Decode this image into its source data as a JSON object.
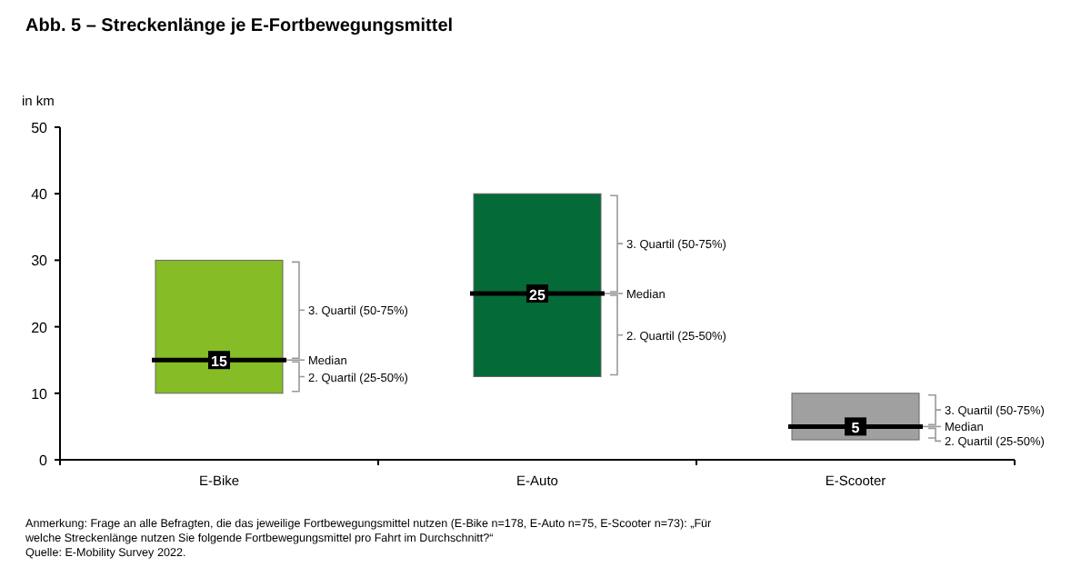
{
  "chart_data": {
    "type": "box",
    "title": "Abb. 5 – Streckenlänge je E-Fortbewegungsmittel",
    "ylabel": "in km",
    "categories": [
      "E-Bike",
      "E-Auto",
      "E-Scooter"
    ],
    "boxes": [
      {
        "low": 10,
        "q1": 10,
        "median": 15,
        "q3": 30,
        "high": 30
      },
      {
        "low": 12.5,
        "q1": 12.5,
        "median": 25,
        "q3": 40,
        "high": 40
      },
      {
        "low": 3,
        "q1": 3,
        "median": 5,
        "q3": 10,
        "high": 10
      }
    ],
    "colors": [
      "#86bc25",
      "#046a38",
      "#a0a0a0"
    ],
    "value_labels": [
      "15",
      "25",
      "5"
    ],
    "ylim": [
      0,
      50
    ],
    "yticks": [
      0,
      10,
      20,
      30,
      40,
      50
    ],
    "grid": false,
    "annotations": [
      "3. Quartil (50-75%)",
      "Median",
      "2. Quartil (25-50%)",
      "3. Quartil (50-75%)",
      "Median",
      "2. Quartil (25-50%)",
      "3. Quartil (50-75%)",
      "Median",
      "2. Quartil (25-50%)",
      "Anmerkung: Frage an alle Befragten, die das jeweilige Fortbewegungsmittel nutzen (E-Bike n=178, E-Auto n=75, E-Scooter n=73): „Für welche Streckenlänge nutzen Sie folgende Fortbewegungsmittel pro Fahrt im Durchschnitt?“",
      "Quelle: E-Mobility Survey 2022."
    ]
  }
}
